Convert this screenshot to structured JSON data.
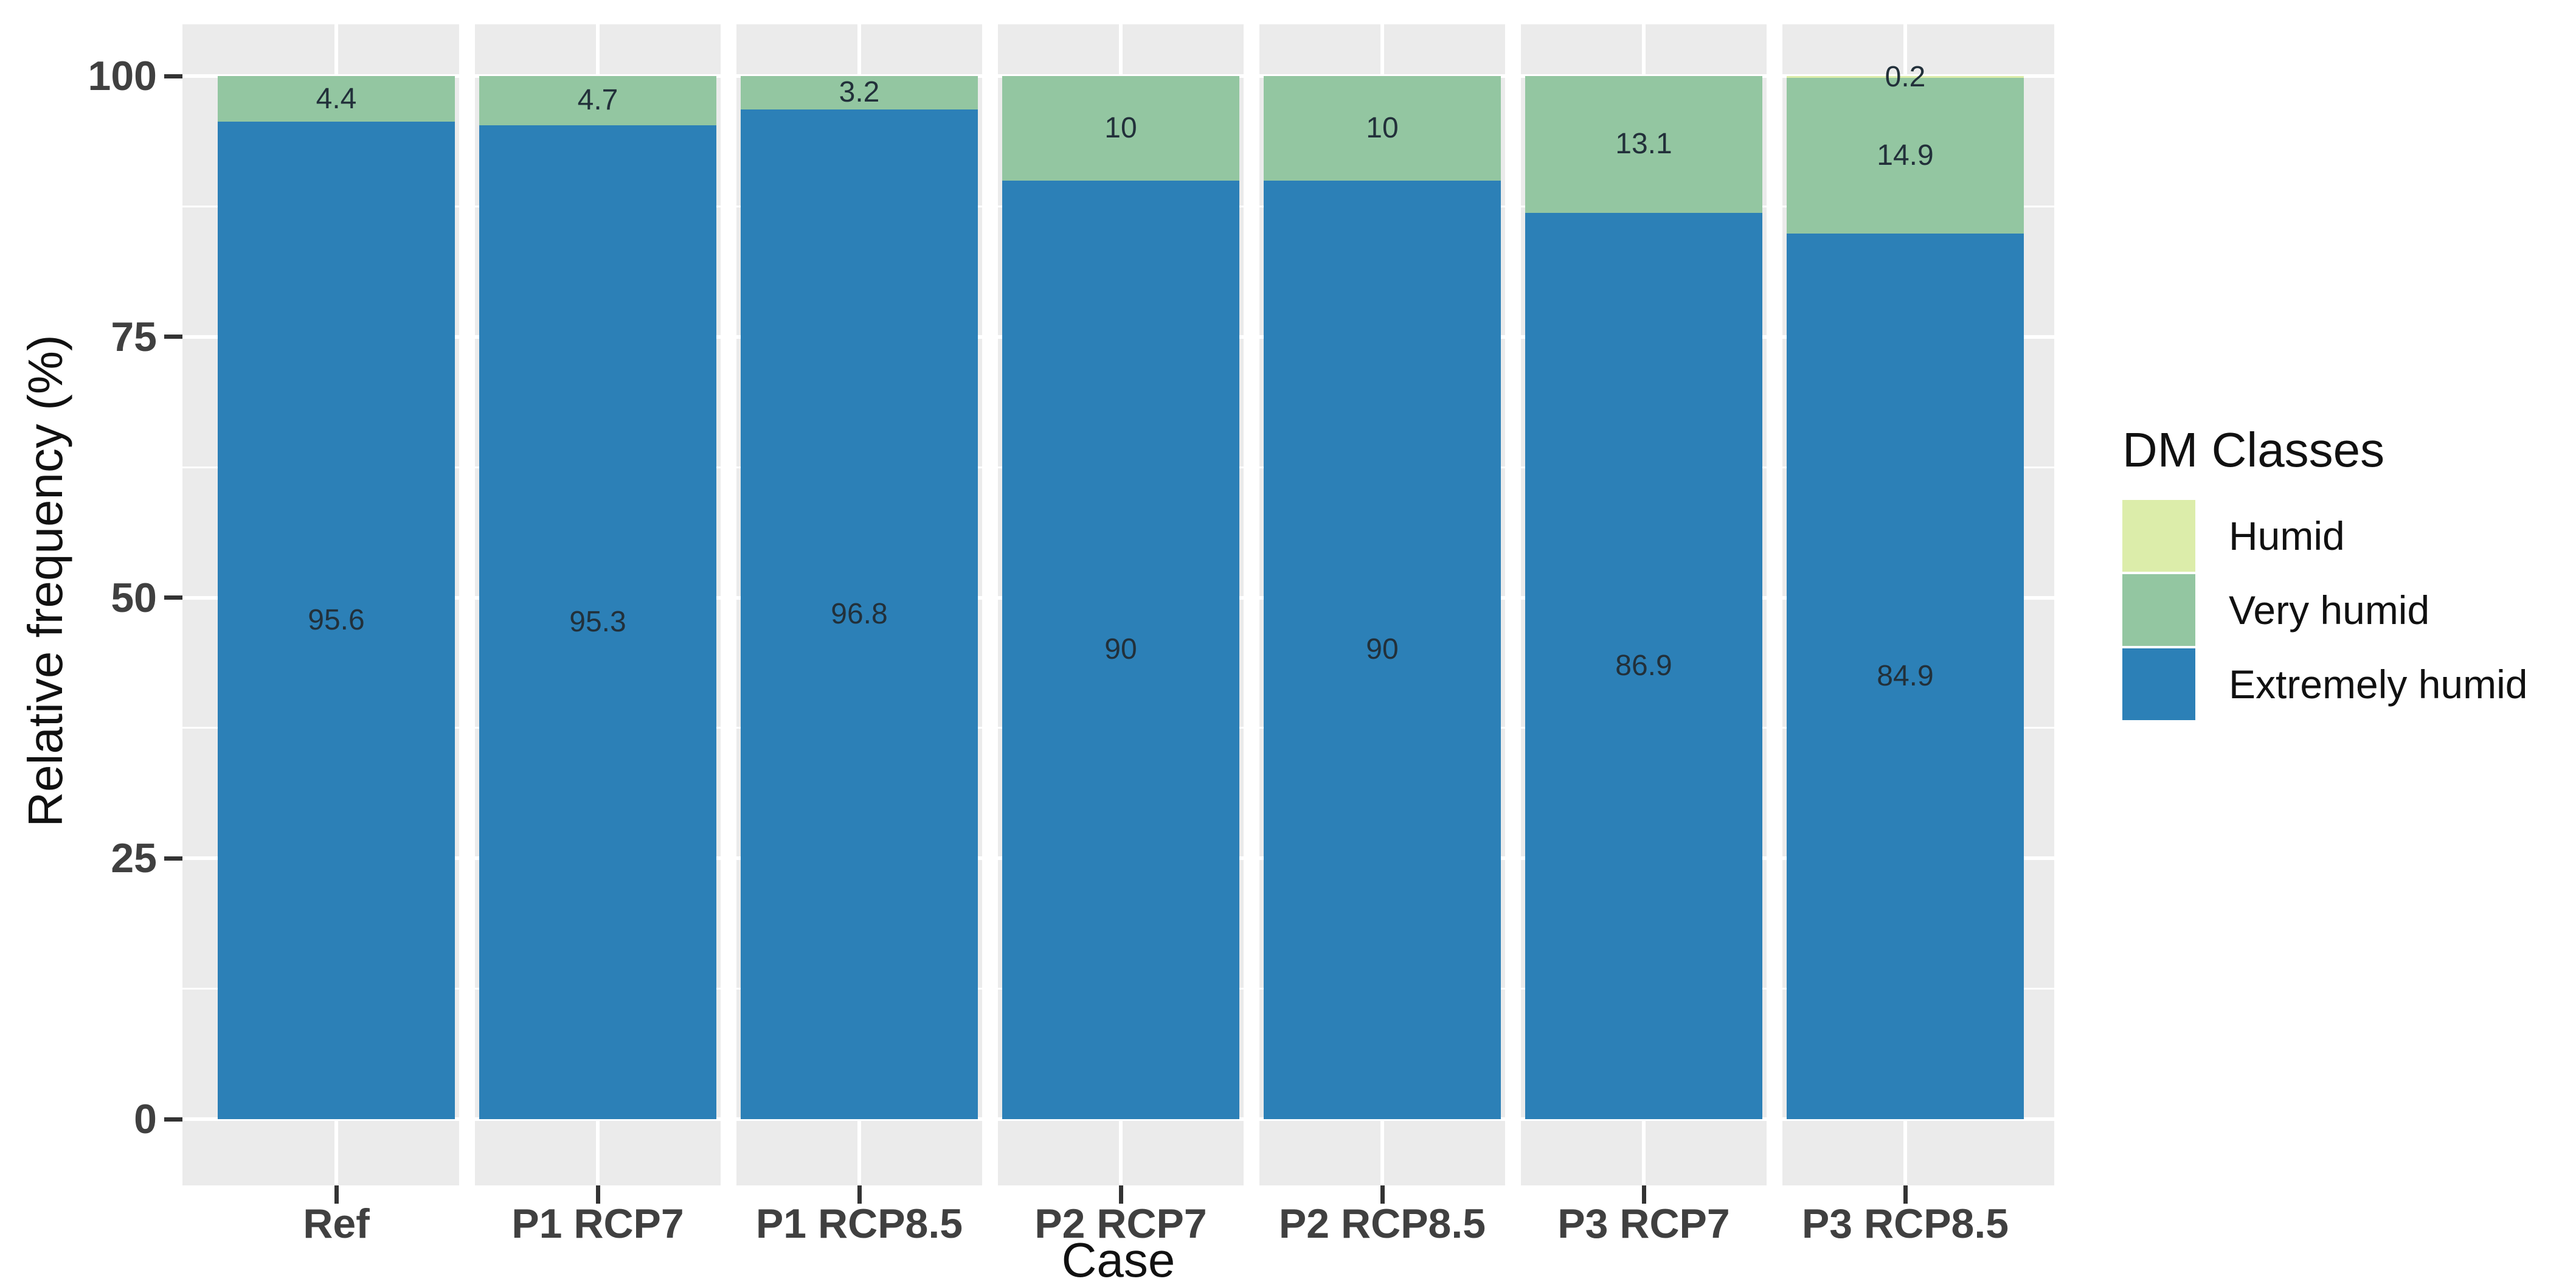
{
  "chart_data": {
    "type": "bar",
    "stacked": true,
    "orientation": "vertical",
    "xlabel": "Case",
    "ylabel": "Relative frequency (%)",
    "ylim": [
      0,
      100
    ],
    "yticks": [
      0,
      25,
      50,
      75,
      100
    ],
    "ytick_labels": [
      "0",
      "25",
      "50",
      "75",
      "100"
    ],
    "yminor_ticks": [
      12.5,
      37.5,
      62.5,
      87.5
    ],
    "grid": "white major and minor gridlines on gray panel",
    "legend_title": "DM Classes",
    "legend_position": "right",
    "categories": [
      "Ref",
      "P1 RCP7",
      "P1 RCP8.5",
      "P2 RCP7",
      "P2 RCP8.5",
      "P3 RCP7",
      "P3 RCP8.5"
    ],
    "series": [
      {
        "name": "Humid",
        "color": "#dcedaa",
        "values": [
          0,
          0,
          0,
          0,
          0,
          0,
          0.2
        ],
        "labels": [
          null,
          null,
          null,
          null,
          null,
          null,
          "0.2"
        ]
      },
      {
        "name": "Very humid",
        "color": "#93c6a1",
        "values": [
          4.4,
          4.7,
          3.2,
          10,
          10,
          13.1,
          14.9
        ],
        "labels": [
          "4.4",
          "4.7",
          "3.2",
          "10",
          "10",
          "13.1",
          "14.9"
        ]
      },
      {
        "name": "Extremely humid",
        "color": "#2c80b7",
        "values": [
          95.6,
          95.3,
          96.8,
          90,
          90,
          86.9,
          84.9
        ],
        "labels": [
          "95.6",
          "95.3",
          "96.8",
          "90",
          "90",
          "86.9",
          "84.9"
        ]
      }
    ],
    "stack_order_bottom_to_top": [
      "Extremely humid",
      "Very humid",
      "Humid"
    ],
    "colors": {
      "panel_bg": "#ebebeb",
      "grid": "#ffffff",
      "axis_text": "#404040",
      "axis_title": "#111111",
      "tick_mark": "#333333",
      "bar_label": "#22303a"
    }
  }
}
